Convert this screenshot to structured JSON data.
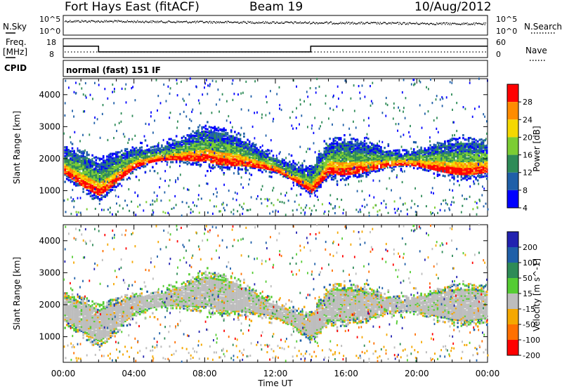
{
  "header": {
    "station": "Fort Hays East (fitACF)",
    "beam": "Beam 19",
    "date": "10/Aug/2012"
  },
  "strips": {
    "nsky_label": "N.Sky",
    "nsky_ticks": [
      "10^5",
      "10^0"
    ],
    "nsearch_label": "N.Search",
    "nsearch_ticks": [
      "10^5",
      "10^0"
    ],
    "freq_label": "Freq.",
    "freq_unit": "[MHz]",
    "freq_ticks": [
      "18",
      "8"
    ],
    "nave_label": "Nave",
    "nave_ticks": [
      "60",
      "0"
    ],
    "cpid_label": "CPID",
    "cpid_text": "normal (fast) 151 IF",
    "freq_steps": [
      {
        "t": 0,
        "f": 14.0
      },
      {
        "t": 2,
        "f": 11.0
      },
      {
        "t": 14,
        "f": 14.0
      },
      {
        "t": 24,
        "f": 14.0
      }
    ]
  },
  "chart_data": [
    {
      "type": "heatmap",
      "parameter": "power",
      "ylabel": "Slant Range [km]",
      "ylim": [
        200,
        4500
      ],
      "yticks": [
        "1000",
        "2000",
        "3000",
        "4000"
      ],
      "xlim": [
        0,
        24
      ],
      "colorbar": {
        "label": "Power [dB]",
        "ticks": [
          "28",
          "24",
          "20",
          "16",
          "12",
          "8",
          "4"
        ],
        "colors": [
          "#ff0000",
          "#ff8c00",
          "#f5d800",
          "#7ccd33",
          "#2e8b57",
          "#1f5fa8",
          "#0000ff"
        ]
      },
      "echo_band": [
        {
          "t": 0,
          "range": 1900
        },
        {
          "t": 2,
          "range": 1350
        },
        {
          "t": 4,
          "range": 2000
        },
        {
          "t": 8,
          "range": 2400
        },
        {
          "t": 10,
          "range": 2200
        },
        {
          "t": 12,
          "range": 1800
        },
        {
          "t": 14,
          "range": 1300
        },
        {
          "t": 15,
          "range": 2000
        },
        {
          "t": 20,
          "range": 2000
        },
        {
          "t": 24,
          "range": 2000
        }
      ]
    },
    {
      "type": "heatmap",
      "parameter": "velocity",
      "ylabel": "Slant Range [km]",
      "ylim": [
        200,
        4500
      ],
      "yticks": [
        "1000",
        "2000",
        "3000",
        "4000"
      ],
      "xlim": [
        0,
        24
      ],
      "colorbar": {
        "label": "Velocity [m s^-1]",
        "ticks": [
          "200",
          "100",
          "50",
          "15",
          "-15",
          "-50",
          "-100",
          "-200"
        ],
        "colors": [
          "#2222b0",
          "#1f5fa8",
          "#2e8b57",
          "#55cc33",
          "#bdbdbd",
          "#f5a800",
          "#ff7000",
          "#ff0000"
        ]
      }
    }
  ],
  "xaxis": {
    "ticks": [
      "00:00",
      "04:00",
      "08:00",
      "12:00",
      "16:00",
      "20:00",
      "00:00"
    ],
    "label": "Time UT"
  }
}
